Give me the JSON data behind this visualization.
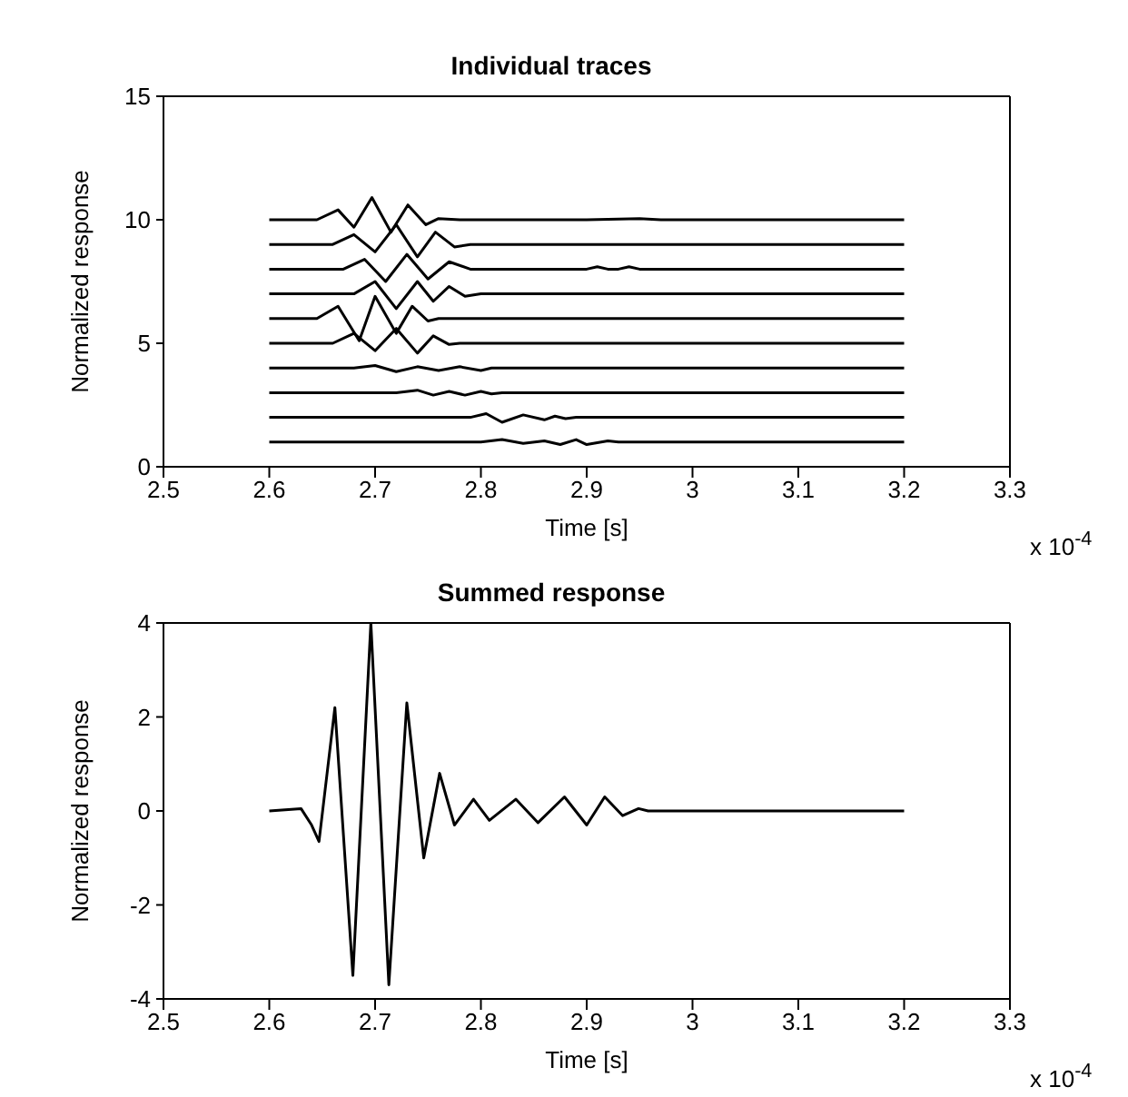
{
  "chart_data": [
    {
      "type": "line",
      "title": "Individual traces",
      "xlabel": "Time [s]",
      "ylabel": "Normalized response",
      "annotations": [
        "x 10$^{-4}$"
      ],
      "xlim": [
        2.5,
        3.3
      ],
      "xticks": [
        2.5,
        2.6,
        2.7,
        2.8,
        2.9,
        3,
        3.1,
        3.2,
        3.3
      ],
      "ylim": [
        0,
        15
      ],
      "yticks": [
        0,
        5,
        10,
        15
      ],
      "series": [
        {
          "color": "#000000",
          "x": [
            2.6,
            2.645,
            2.665,
            2.68,
            2.697,
            2.715,
            2.731,
            2.748,
            2.76,
            2.78,
            2.9,
            2.95,
            2.97,
            3.2
          ],
          "values": [
            10,
            10,
            10.4,
            9.7,
            10.9,
            9.5,
            10.6,
            9.8,
            10.05,
            10,
            10,
            10.05,
            10,
            10
          ]
        },
        {
          "color": "#000000",
          "x": [
            2.6,
            2.66,
            2.68,
            2.7,
            2.72,
            2.74,
            2.757,
            2.775,
            2.79,
            3.2
          ],
          "values": [
            9,
            9,
            9.4,
            8.7,
            9.8,
            8.5,
            9.5,
            8.9,
            9,
            9
          ]
        },
        {
          "color": "#000000",
          "x": [
            2.6,
            2.67,
            2.69,
            2.71,
            2.73,
            2.75,
            2.77,
            2.79,
            2.9,
            2.91,
            2.92,
            2.93,
            2.94,
            2.95,
            3.2
          ],
          "values": [
            8,
            8,
            8.4,
            7.5,
            8.6,
            7.6,
            8.3,
            8,
            8,
            8.1,
            8,
            8,
            8.1,
            8,
            8
          ]
        },
        {
          "color": "#000000",
          "x": [
            2.6,
            2.68,
            2.7,
            2.72,
            2.74,
            2.755,
            2.77,
            2.785,
            2.8,
            3.2
          ],
          "values": [
            7,
            7,
            7.5,
            6.4,
            7.5,
            6.7,
            7.3,
            6.9,
            7,
            7
          ]
        },
        {
          "color": "#000000",
          "x": [
            2.6,
            2.645,
            2.665,
            2.685,
            2.7,
            2.72,
            2.735,
            2.75,
            2.76,
            3.2
          ],
          "values": [
            6,
            6,
            6.5,
            5.1,
            6.9,
            5.4,
            6.5,
            5.9,
            6,
            6
          ]
        },
        {
          "color": "#000000",
          "x": [
            2.6,
            2.66,
            2.68,
            2.7,
            2.72,
            2.74,
            2.755,
            2.77,
            2.78,
            3.2
          ],
          "values": [
            5,
            5,
            5.4,
            4.7,
            5.6,
            4.6,
            5.3,
            4.95,
            5,
            5
          ]
        },
        {
          "color": "#000000",
          "x": [
            2.6,
            2.68,
            2.7,
            2.72,
            2.74,
            2.76,
            2.78,
            2.8,
            2.81,
            3.2
          ],
          "values": [
            4,
            4,
            4.1,
            3.85,
            4.05,
            3.9,
            4.05,
            3.9,
            4,
            4
          ]
        },
        {
          "color": "#000000",
          "x": [
            2.6,
            2.72,
            2.74,
            2.755,
            2.77,
            2.785,
            2.8,
            2.81,
            2.82,
            3.2
          ],
          "values": [
            3,
            3,
            3.1,
            2.9,
            3.05,
            2.9,
            3.05,
            2.95,
            3,
            3
          ]
        },
        {
          "color": "#000000",
          "x": [
            2.6,
            2.79,
            2.805,
            2.82,
            2.84,
            2.86,
            2.87,
            2.88,
            2.89,
            3.2
          ],
          "values": [
            2,
            2,
            2.15,
            1.8,
            2.1,
            1.9,
            2.05,
            1.95,
            2,
            2
          ]
        },
        {
          "color": "#000000",
          "x": [
            2.6,
            2.8,
            2.82,
            2.84,
            2.86,
            2.875,
            2.89,
            2.9,
            2.92,
            2.93,
            3.2
          ],
          "values": [
            1,
            1,
            1.1,
            0.95,
            1.05,
            0.9,
            1.1,
            0.9,
            1.05,
            1,
            1
          ]
        }
      ]
    },
    {
      "type": "line",
      "title": "Summed response",
      "xlabel": "Time [s]",
      "ylabel": "Normalized response",
      "annotations": [
        "x 10$^{-4}$"
      ],
      "xlim": [
        2.5,
        3.3
      ],
      "xticks": [
        2.5,
        2.6,
        2.7,
        2.8,
        2.9,
        3,
        3.1,
        3.2,
        3.3
      ],
      "ylim": [
        -4,
        4
      ],
      "yticks": [
        -4,
        -2,
        0,
        2,
        4
      ],
      "series": [
        {
          "color": "#000000",
          "x": [
            2.6,
            2.63,
            2.64,
            2.647,
            2.662,
            2.679,
            2.696,
            2.713,
            2.73,
            2.746,
            2.761,
            2.775,
            2.793,
            2.808,
            2.833,
            2.854,
            2.879,
            2.9,
            2.917,
            2.934,
            2.949,
            2.958,
            3.2
          ],
          "values": [
            0,
            0.05,
            -0.3,
            -0.65,
            2.2,
            -3.5,
            4,
            -3.7,
            2.3,
            -1,
            0.8,
            -0.3,
            0.25,
            -0.2,
            0.25,
            -0.25,
            0.3,
            -0.3,
            0.3,
            -0.1,
            0.05,
            0,
            0
          ]
        }
      ]
    }
  ]
}
